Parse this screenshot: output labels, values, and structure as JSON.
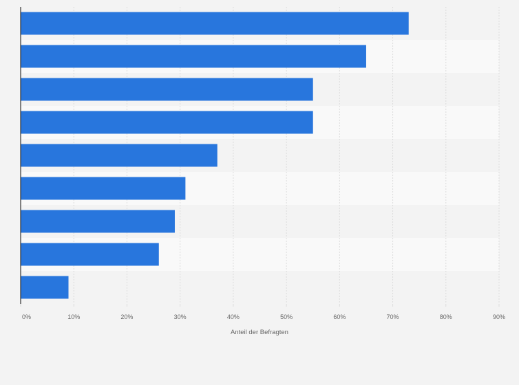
{
  "chart_data": {
    "type": "bar",
    "orientation": "horizontal",
    "categories": [
      "",
      "",
      "",
      "",
      "",
      "",
      "",
      "",
      ""
    ],
    "values": [
      73,
      65,
      55,
      55,
      37,
      31,
      29,
      26,
      9
    ],
    "x_ticks": [
      "0%",
      "10%",
      "20%",
      "30%",
      "40%",
      "50%",
      "60%",
      "70%",
      "80%",
      "90%"
    ],
    "xlabel": "Anteil der Befragten",
    "xlim": [
      0,
      90
    ],
    "value_unit": "%",
    "grid": true,
    "legend": "none",
    "colors": {
      "bar": "#2876dd",
      "background": "#f3f3f3",
      "band_light": "#f9f9f9",
      "band_dark": "#f3f3f3",
      "grid": "#dcdcdc",
      "axis": "#333333",
      "text": "#666666"
    }
  }
}
